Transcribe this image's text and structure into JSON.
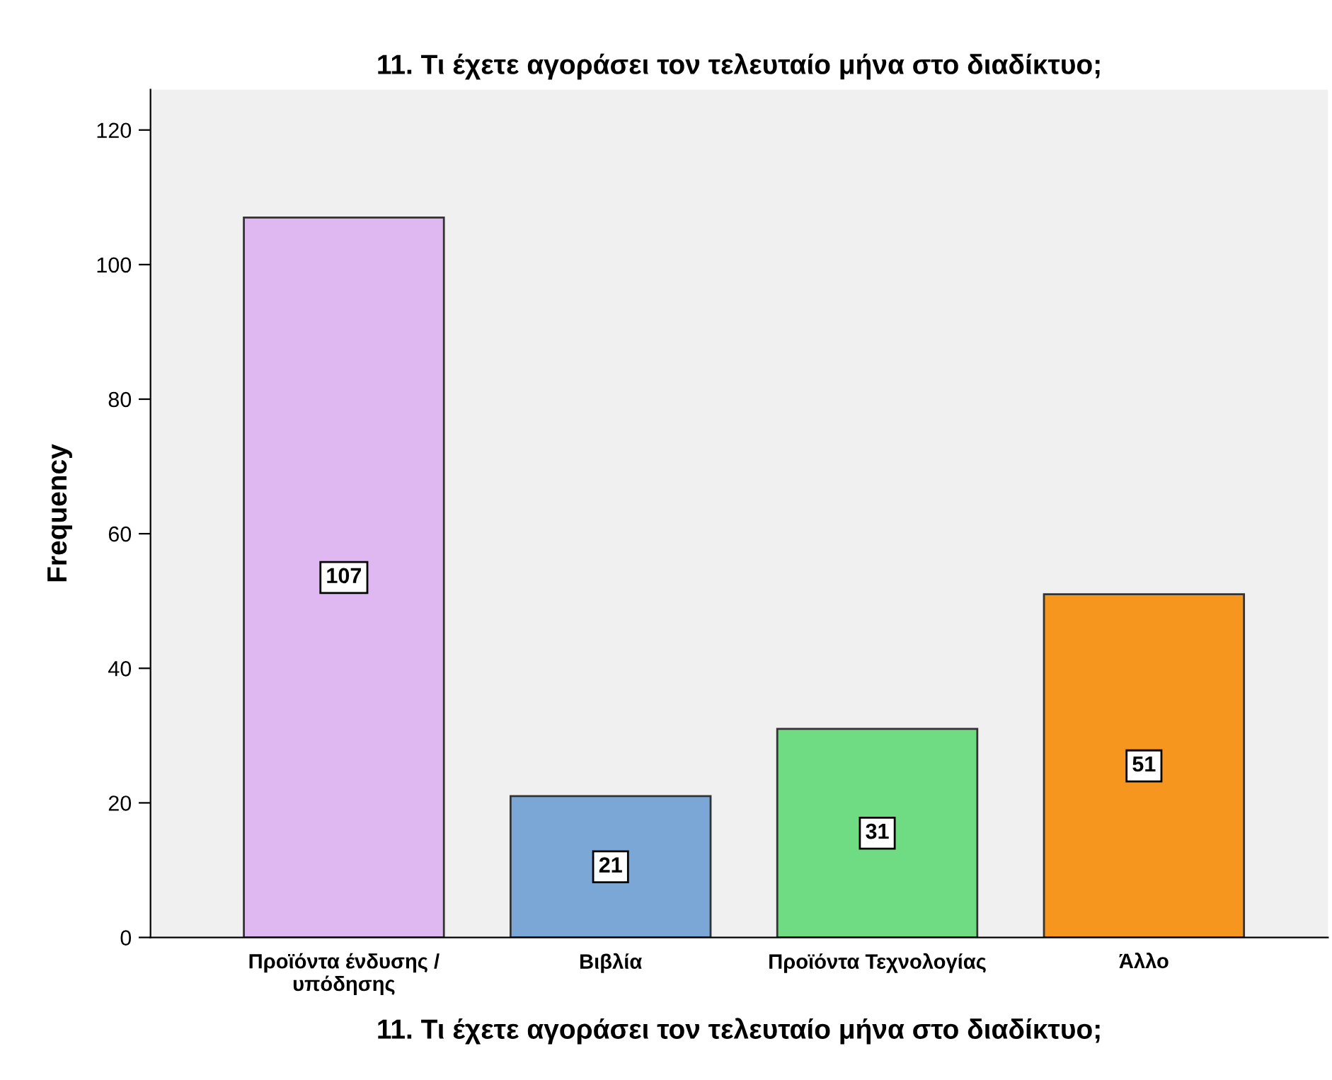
{
  "chart_data": {
    "type": "bar",
    "title": "11. Τι έχετε αγοράσει τον τελευταίο μήνα στο διαδίκτυο;",
    "xlabel": "11. Τι έχετε αγοράσει τον τελευταίο μήνα στο διαδίκτυο;",
    "ylabel": "Frequency",
    "categories": [
      "Προϊόντα ένδυσης /\nυπόδησης",
      "Βιβλία",
      "Προϊόντα Τεχνολογίας",
      "Άλλο"
    ],
    "values": [
      107,
      21,
      31,
      51
    ],
    "colors": [
      "#dfb8f2",
      "#7aa7d6",
      "#6fdc84",
      "#f7961e"
    ],
    "ylim": [
      0,
      126
    ],
    "yticks": [
      0,
      20,
      40,
      60,
      80,
      100,
      120
    ],
    "grid": false,
    "data_labels": true
  }
}
